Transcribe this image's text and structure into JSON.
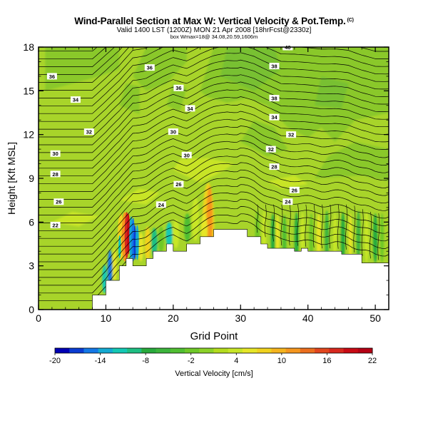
{
  "header": {
    "title": "Wind-Parallel Section at Max W: Vertical Velocity & Pot.Temp.",
    "copyright": "(C)",
    "valid_line": "Valid 1400 LST (1200Z) MON 21 Apr 2008 [18hrFcst@2330z]",
    "box_line": "box Wmax=18@ 34.08,20.59,1606m"
  },
  "colorbar": {
    "label": "Vertical Velocity [cm/s]",
    "ticks": [
      "-20",
      "-14",
      "-8",
      "-2",
      "4",
      "10",
      "16",
      "22"
    ],
    "colors": [
      "#0000b4",
      "#0a3cd2",
      "#1478e6",
      "#14aad2",
      "#14c8b4",
      "#1ebe82",
      "#28aa3c",
      "#3cb43c",
      "#50be32",
      "#6ec828",
      "#8cd228",
      "#b4dc1e",
      "#c8e628",
      "#e6e628",
      "#f0d21e",
      "#f5b41e",
      "#f5961e",
      "#eb6e1e",
      "#e1461e",
      "#d7281e",
      "#c80a14",
      "#b40014"
    ]
  },
  "chart_data": {
    "type": "heatmap",
    "title": "Wind-Parallel Section at Max W: Vertical Velocity & Pot.Temp.",
    "xlabel": "Grid Point",
    "ylabel": "Height [Kft MSL]",
    "xlim": [
      0,
      52
    ],
    "ylim": [
      0,
      18
    ],
    "x_ticks": [
      "0",
      "10",
      "20",
      "30",
      "40",
      "50"
    ],
    "y_ticks": [
      "0",
      "3",
      "6",
      "9",
      "12",
      "15",
      "18"
    ],
    "shaded_variable": "Vertical Velocity [cm/s]",
    "color_range": [
      -20,
      22
    ],
    "contour_variable": "Potential Temperature",
    "contour_labels": [
      "40",
      "38",
      "38",
      "36",
      "36",
      "36",
      "34",
      "34",
      "34",
      "32",
      "32",
      "32",
      "30",
      "30",
      "30",
      "28",
      "28",
      "26",
      "26",
      "26",
      "24",
      "24",
      "22"
    ],
    "terrain": [
      [
        0,
        0
      ],
      [
        6,
        0
      ],
      [
        8,
        0
      ],
      [
        8,
        1
      ],
      [
        10,
        1
      ],
      [
        10,
        2
      ],
      [
        12,
        2
      ],
      [
        12,
        3
      ],
      [
        13,
        3
      ],
      [
        13,
        3.5
      ],
      [
        14,
        3.5
      ],
      [
        14,
        3
      ],
      [
        16,
        3
      ],
      [
        16,
        3.5
      ],
      [
        17,
        3.5
      ],
      [
        17,
        4
      ],
      [
        19,
        4
      ],
      [
        19,
        4.5
      ],
      [
        20,
        4.5
      ],
      [
        20,
        4
      ],
      [
        22,
        4
      ],
      [
        22,
        4.5
      ],
      [
        24,
        4.5
      ],
      [
        24,
        5
      ],
      [
        26,
        5
      ],
      [
        26,
        5.5
      ],
      [
        31,
        5.5
      ],
      [
        31,
        5
      ],
      [
        33,
        5
      ],
      [
        33,
        4.5
      ],
      [
        34,
        4.5
      ],
      [
        34,
        4.2
      ],
      [
        38,
        4.2
      ],
      [
        38,
        4
      ],
      [
        39,
        4
      ],
      [
        39,
        4.2
      ],
      [
        40,
        4.2
      ],
      [
        40,
        4
      ],
      [
        45,
        4
      ],
      [
        45,
        3.8
      ],
      [
        48,
        3.8
      ],
      [
        48,
        3.2
      ],
      [
        52,
        3.2
      ],
      [
        52,
        0
      ]
    ],
    "max_w": {
      "value": 18,
      "grid_point": 13,
      "height_kft": 5.3
    },
    "min_w": {
      "value": -14,
      "grid_point": 14,
      "height_kft": 4.6
    }
  }
}
